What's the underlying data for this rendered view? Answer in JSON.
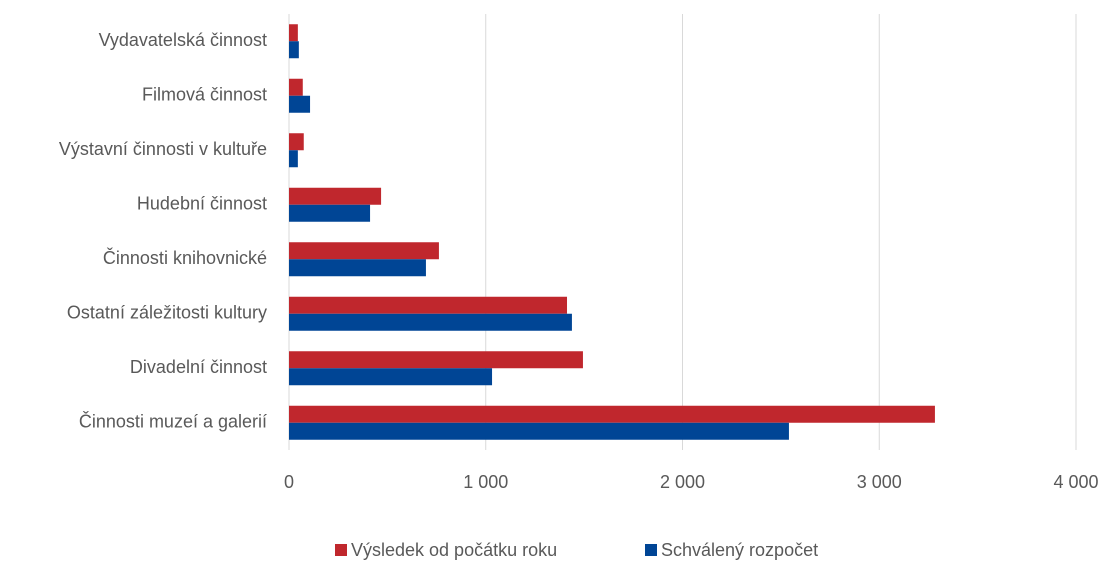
{
  "chart_data": {
    "type": "hbar",
    "categories": [
      "Vydavatelská činnost",
      "Filmová činnost",
      "Výstavní činnosti v kultuře",
      "Hudební činnost",
      "Činnosti knihovnické",
      "Ostatní záležitosti kultury",
      "Divadelní činnost",
      "Činnosti muzeí a galerií"
    ],
    "series": [
      {
        "name": "Výsledek od počátku roku",
        "color": "#c0272d",
        "values": [
          45,
          70,
          75,
          468,
          762,
          1413,
          1494,
          3283
        ]
      },
      {
        "name": "Schválený rozpočet",
        "color": "#004595",
        "values": [
          50,
          107,
          45,
          412,
          696,
          1438,
          1032,
          2541
        ]
      }
    ],
    "xlim": [
      0,
      4000
    ],
    "xticks": [
      0,
      {
        "value": 1000,
        "label": "1 000"
      },
      {
        "value": 2000,
        "label": "2 000"
      },
      {
        "value": 3000,
        "label": "3 000"
      },
      {
        "value": 4000,
        "label": "4 000"
      }
    ],
    "grid": true,
    "legend": "bottom"
  }
}
